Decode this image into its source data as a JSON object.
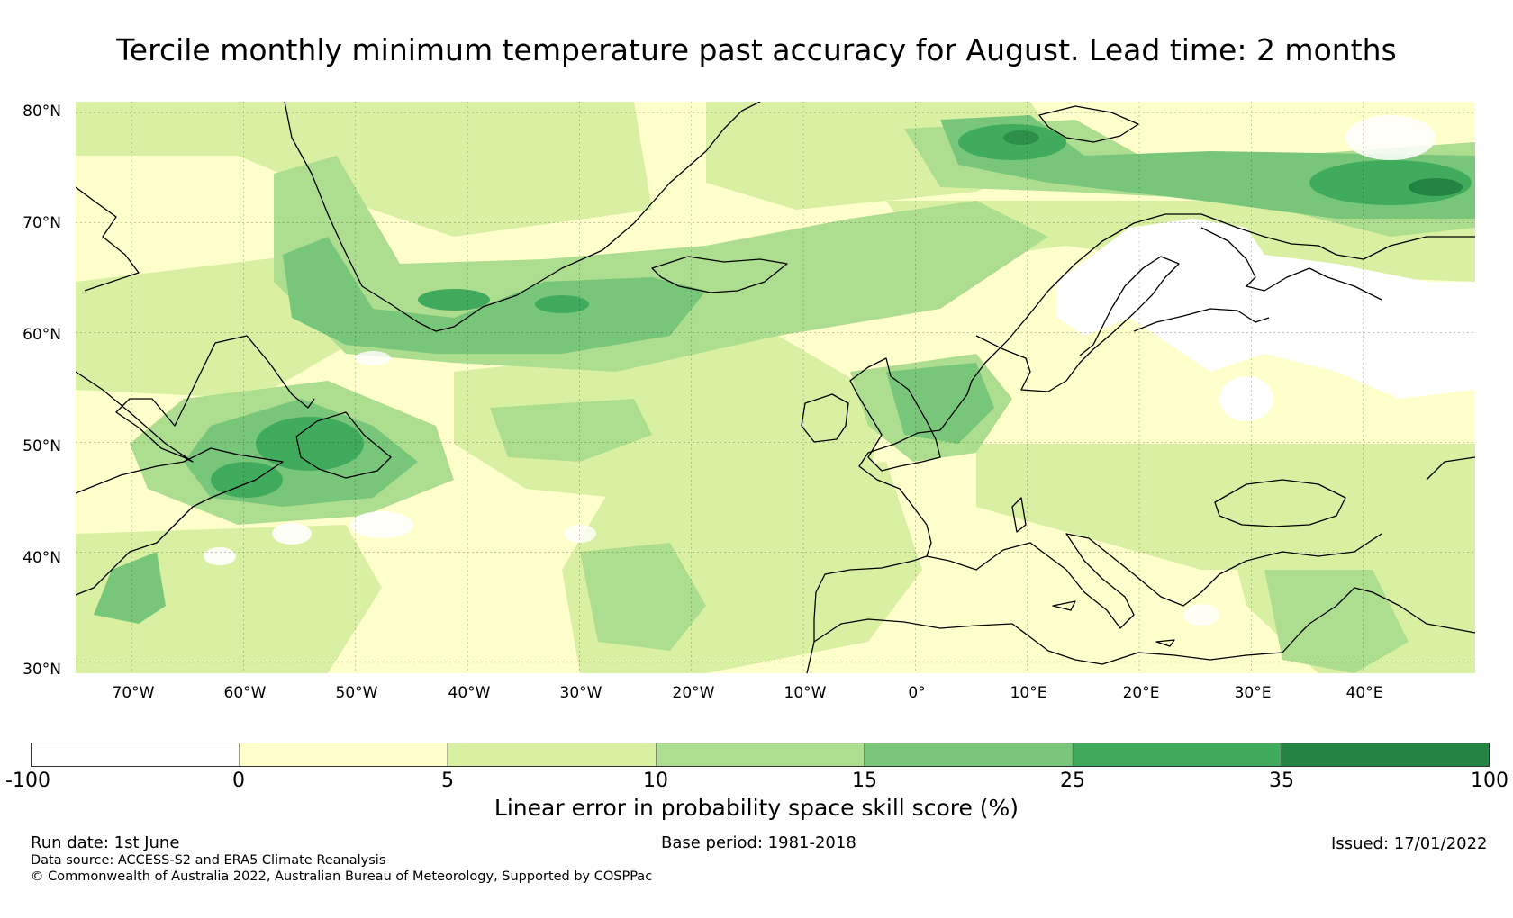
{
  "title": "Tercile monthly minimum temperature past accuracy for August. Lead time: 2 months",
  "map": {
    "lat_labels": [
      "80°N",
      "70°N",
      "60°N",
      "50°N",
      "40°N",
      "30°N"
    ],
    "lon_labels": [
      "70°W",
      "60°W",
      "50°W",
      "40°W",
      "30°W",
      "20°W",
      "10°W",
      "0°",
      "10°E",
      "20°E",
      "30°E",
      "40°E"
    ],
    "extent": {
      "lon": [
        -75,
        50
      ],
      "lat": [
        29,
        81
      ]
    },
    "background_color": "#ffffcc",
    "coastline_color": "#000000"
  },
  "colorbar": {
    "ticks": [
      "-100",
      "0",
      "5",
      "10",
      "15",
      "25",
      "35",
      "100"
    ],
    "colors": [
      "#ffffff",
      "#ffffcc",
      "#d9f0a3",
      "#addd8e",
      "#78c679",
      "#41ab5d",
      "#238443"
    ],
    "label": "Linear error in probability space skill score (%)"
  },
  "footer": {
    "run_date": "Run date: 1st June",
    "base_period": "Base period: 1981-2018",
    "issued": "Issued: 17/01/2022",
    "data_source": "Data source: ACCESS-S2 and ERA5 Climate Reanalysis",
    "copyright": "© Commonwealth of Australia 2022, Australian Bureau of Meteorology, Supported by COSPPac"
  }
}
